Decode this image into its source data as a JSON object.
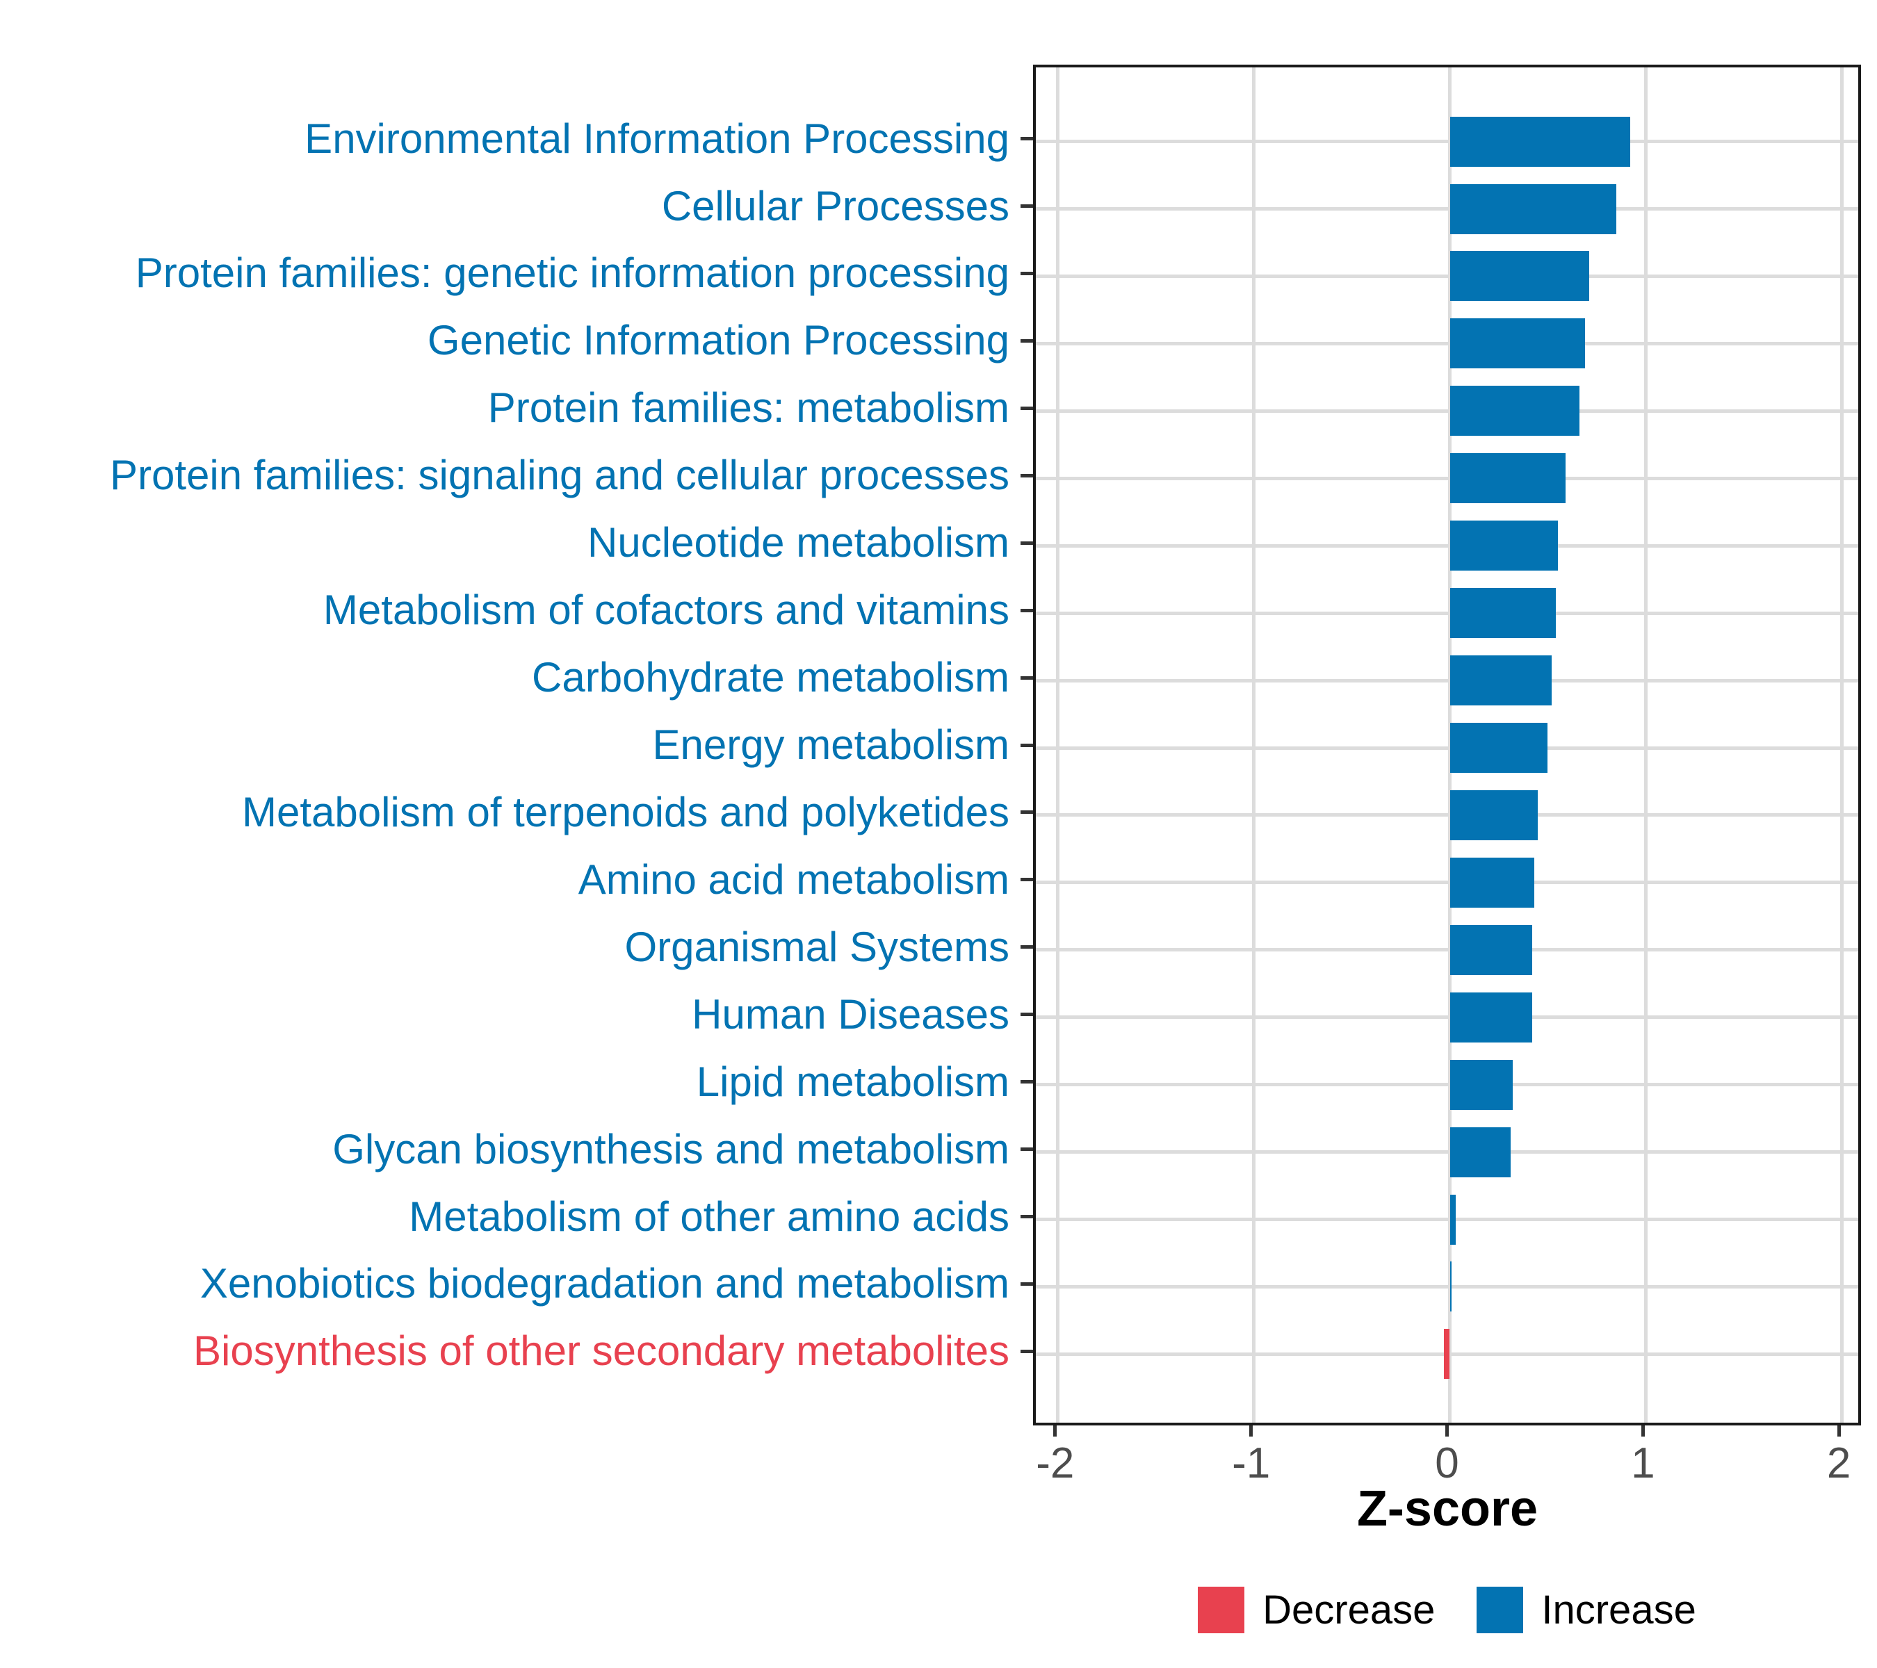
{
  "chart_data": {
    "type": "bar",
    "orientation": "horizontal",
    "title": "",
    "xlabel": "Z-score",
    "ylabel": "",
    "xlim": [
      -2.113,
      2.113
    ],
    "x_ticks": [
      -2,
      -1,
      0,
      1,
      2
    ],
    "grid": "major-only",
    "legend_position": "bottom",
    "colors": {
      "Decrease": "#E8414F",
      "Increase": "#0373B2"
    },
    "grid_color": "#DCDCDC",
    "axis_text_color": "#4D4D4D",
    "bars": [
      {
        "label": "Environmental Information Processing",
        "value": 0.92,
        "group": "Increase"
      },
      {
        "label": "Cellular Processes",
        "value": 0.85,
        "group": "Increase"
      },
      {
        "label": "Protein families: genetic information processing",
        "value": 0.71,
        "group": "Increase"
      },
      {
        "label": "Genetic Information Processing",
        "value": 0.69,
        "group": "Increase"
      },
      {
        "label": "Protein families: metabolism",
        "value": 0.66,
        "group": "Increase"
      },
      {
        "label": "Protein families: signaling and cellular processes",
        "value": 0.59,
        "group": "Increase"
      },
      {
        "label": "Nucleotide metabolism",
        "value": 0.55,
        "group": "Increase"
      },
      {
        "label": "Metabolism of cofactors and vitamins",
        "value": 0.54,
        "group": "Increase"
      },
      {
        "label": "Carbohydrate metabolism",
        "value": 0.52,
        "group": "Increase"
      },
      {
        "label": "Energy metabolism",
        "value": 0.5,
        "group": "Increase"
      },
      {
        "label": "Metabolism of terpenoids and polyketides",
        "value": 0.45,
        "group": "Increase"
      },
      {
        "label": "Amino acid metabolism",
        "value": 0.43,
        "group": "Increase"
      },
      {
        "label": "Organismal Systems",
        "value": 0.42,
        "group": "Increase"
      },
      {
        "label": "Human Diseases",
        "value": 0.42,
        "group": "Increase"
      },
      {
        "label": "Lipid metabolism",
        "value": 0.32,
        "group": "Increase"
      },
      {
        "label": "Glycan biosynthesis and metabolism",
        "value": 0.31,
        "group": "Increase"
      },
      {
        "label": "Metabolism of other amino acids",
        "value": 0.03,
        "group": "Increase"
      },
      {
        "label": "Xenobiotics biodegradation and metabolism",
        "value": 0.01,
        "group": "Increase"
      },
      {
        "label": "Biosynthesis of other secondary metabolites",
        "value": -0.03,
        "group": "Decrease"
      }
    ],
    "legend": [
      {
        "label": "Decrease",
        "group": "Decrease",
        "color": "#E8414F"
      },
      {
        "label": "Increase",
        "group": "Increase",
        "color": "#0373B2"
      }
    ]
  }
}
